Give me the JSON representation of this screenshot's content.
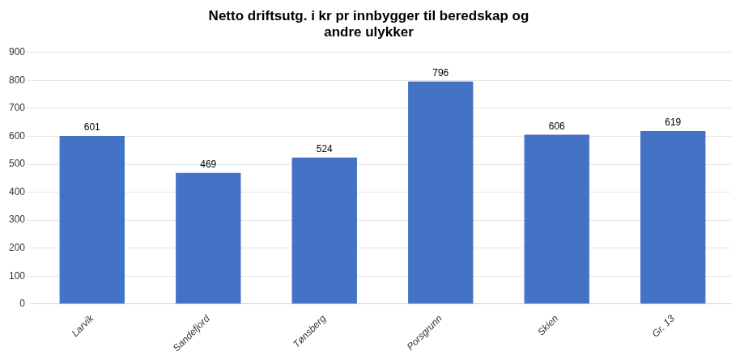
{
  "chart_data": {
    "type": "bar",
    "title": "Netto driftsutg. i kr pr innbygger til beredskap og\nandre ulykker",
    "categories": [
      "Larvik",
      "Sandefjord",
      "Tønsberg",
      "Porsgrunn",
      "Skien",
      "Gr. 13"
    ],
    "values": [
      601,
      469,
      524,
      796,
      606,
      619
    ],
    "color": "#4472C4",
    "ylim": [
      0,
      900
    ],
    "yticks": [
      0,
      100,
      200,
      300,
      400,
      500,
      600,
      700,
      800,
      900
    ],
    "grid": true,
    "data_labels": true
  }
}
